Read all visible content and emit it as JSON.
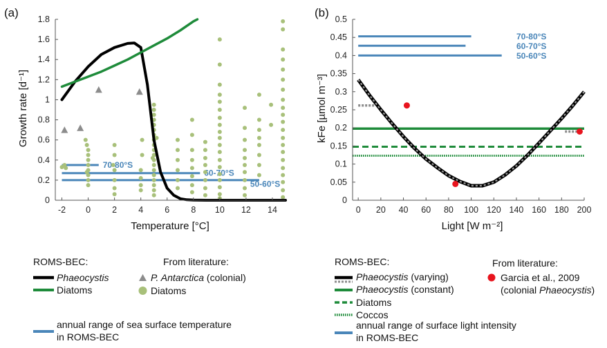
{
  "chart_data": [
    {
      "panel_label": "(a)",
      "type": "line",
      "xlabel": "Temperature [°C]",
      "ylabel": "Growth rate [d⁻¹]",
      "xlim": [
        -2.5,
        15
      ],
      "ylim": [
        0,
        1.8
      ],
      "xticks": [
        "-2",
        "0",
        "2",
        "4",
        "6",
        "8",
        "10",
        "12",
        "14"
      ],
      "yticks": [
        "0",
        "0.2",
        "0.4",
        "0.6",
        "0.8",
        "1",
        "1.2",
        "1.4",
        "1.6",
        "1.8"
      ],
      "series": [
        {
          "name": "Phaeocystis",
          "color": "#000000",
          "style": "solid",
          "x": [
            -2,
            -1,
            0,
            1,
            2,
            3,
            3.5,
            4,
            4.5,
            5,
            5.5,
            6,
            6.5,
            7,
            7.5,
            8,
            9,
            10,
            12,
            15
          ],
          "y": [
            1.0,
            1.18,
            1.33,
            1.45,
            1.52,
            1.56,
            1.565,
            1.52,
            1.15,
            0.6,
            0.28,
            0.12,
            0.05,
            0.015,
            0.005,
            0.002,
            0,
            0,
            0,
            0
          ]
        },
        {
          "name": "Diatoms",
          "color": "#1e8b3a",
          "style": "solid",
          "x": [
            -2,
            -1,
            0,
            1,
            2,
            3,
            4,
            5,
            6,
            7,
            8,
            8.3
          ],
          "y": [
            1.13,
            1.18,
            1.23,
            1.28,
            1.34,
            1.4,
            1.47,
            1.54,
            1.61,
            1.69,
            1.78,
            1.8
          ]
        }
      ],
      "literature": [
        {
          "name": "P. Antarctica (colonial)",
          "marker": "triangle",
          "color": "#8c8c8c",
          "points": [
            [
              -1.8,
              0.7
            ],
            [
              -0.6,
              0.72
            ],
            [
              0.8,
              1.1
            ],
            [
              3.9,
              1.08
            ]
          ]
        },
        {
          "name": "Diatoms",
          "marker": "circle",
          "color": "#a8c07a",
          "points": [
            [
              -2,
              0.33
            ],
            [
              -1.8,
              0.35
            ],
            [
              -1.7,
              0.32
            ],
            [
              -0.2,
              0.6
            ],
            [
              -0.1,
              0.55
            ],
            [
              0,
              0.5
            ],
            [
              0,
              0.45
            ],
            [
              0,
              0.4
            ],
            [
              0,
              0.35
            ],
            [
              0,
              0.3
            ],
            [
              0,
              0.25
            ],
            [
              0,
              0.2
            ],
            [
              0,
              0.15
            ],
            [
              -0.1,
              0.28
            ],
            [
              2,
              0.55
            ],
            [
              2,
              0.45
            ],
            [
              2,
              0.3
            ],
            [
              2,
              0.2
            ],
            [
              2,
              0.12
            ],
            [
              2,
              0.06
            ],
            [
              1.9,
              0.35
            ],
            [
              4.1,
              0.6
            ],
            [
              4.1,
              0.45
            ],
            [
              4,
              0.3
            ],
            [
              4,
              0.22
            ],
            [
              4,
              0.15
            ],
            [
              4,
              0.1
            ],
            [
              5,
              0.95
            ],
            [
              5,
              0.9
            ],
            [
              5,
              0.85
            ],
            [
              5,
              0.8
            ],
            [
              5,
              0.75
            ],
            [
              5,
              0.7
            ],
            [
              5,
              0.65
            ],
            [
              5,
              0.6
            ],
            [
              5,
              0.55
            ],
            [
              5,
              0.5
            ],
            [
              5,
              0.45
            ],
            [
              5,
              0.4
            ],
            [
              5,
              0.35
            ],
            [
              5,
              0.3
            ],
            [
              5,
              0.25
            ],
            [
              5,
              0.2
            ],
            [
              5,
              0.15
            ],
            [
              5,
              0.1
            ],
            [
              5,
              0.05
            ],
            [
              5.2,
              0.62
            ],
            [
              4.9,
              0.42
            ],
            [
              6.8,
              0.6
            ],
            [
              6.8,
              0.5
            ],
            [
              6.8,
              0.4
            ],
            [
              6.8,
              0.3
            ],
            [
              6.8,
              0.2
            ],
            [
              6.8,
              0.12
            ],
            [
              7.9,
              0.8
            ],
            [
              7.9,
              0.65
            ],
            [
              7.9,
              0.5
            ],
            [
              7.9,
              0.4
            ],
            [
              7.9,
              0.32
            ],
            [
              7.9,
              0.24
            ],
            [
              7.9,
              0.15
            ],
            [
              7.9,
              0.08
            ],
            [
              8.9,
              0.58
            ],
            [
              8.9,
              0.5
            ],
            [
              8.9,
              0.42
            ],
            [
              8.9,
              0.35
            ],
            [
              8.9,
              0.28
            ],
            [
              8.9,
              0.2
            ],
            [
              8.9,
              0.12
            ],
            [
              8.9,
              0.05
            ],
            [
              10,
              1.6
            ],
            [
              10,
              1.35
            ],
            [
              10,
              1.15
            ],
            [
              10,
              1.05
            ],
            [
              10,
              0.98
            ],
            [
              10,
              0.9
            ],
            [
              10,
              0.82
            ],
            [
              10,
              0.75
            ],
            [
              10,
              0.68
            ],
            [
              10,
              0.62
            ],
            [
              10,
              0.55
            ],
            [
              10,
              0.48
            ],
            [
              10,
              0.4
            ],
            [
              10,
              0.33
            ],
            [
              10,
              0.26
            ],
            [
              10,
              0.2
            ],
            [
              10,
              0.13
            ],
            [
              10,
              0.06
            ],
            [
              10,
              0.02
            ],
            [
              11.9,
              0.92
            ],
            [
              11.9,
              0.72
            ],
            [
              11.9,
              0.6
            ],
            [
              11.9,
              0.5
            ],
            [
              11.9,
              0.42
            ],
            [
              11.9,
              0.35
            ],
            [
              11.9,
              0.28
            ],
            [
              11.9,
              0.2
            ],
            [
              11.9,
              0.12
            ],
            [
              11.9,
              0.05
            ],
            [
              13,
              1.05
            ],
            [
              13,
              0.8
            ],
            [
              13,
              0.7
            ],
            [
              13,
              0.62
            ],
            [
              13,
              0.55
            ],
            [
              13,
              0.45
            ],
            [
              13,
              0.35
            ],
            [
              13,
              0.25
            ],
            [
              13.9,
              0.95
            ],
            [
              13.9,
              0.75
            ],
            [
              14.8,
              1.78
            ],
            [
              14.8,
              1.7
            ],
            [
              14.8,
              1.5
            ],
            [
              14.8,
              1.4
            ],
            [
              14.8,
              1.3
            ],
            [
              14.8,
              1.2
            ],
            [
              14.8,
              1.1
            ],
            [
              14.8,
              1.0
            ],
            [
              14.8,
              0.92
            ],
            [
              14.8,
              0.85
            ],
            [
              14.8,
              0.78
            ],
            [
              14.8,
              0.7
            ],
            [
              14.8,
              0.62
            ],
            [
              14.8,
              0.55
            ],
            [
              14.8,
              0.48
            ],
            [
              14.8,
              0.4
            ],
            [
              14.8,
              0.32
            ],
            [
              14.8,
              0.25
            ],
            [
              14.8,
              0.18
            ],
            [
              14.8,
              0.1
            ],
            [
              14.8,
              0.03
            ]
          ]
        }
      ],
      "ranges": [
        {
          "label": "70-80°S",
          "x": [
            -2,
            0.8
          ],
          "y": 0.35
        },
        {
          "label": "60-70°S",
          "x": [
            -2,
            8.5
          ],
          "y": 0.27
        },
        {
          "label": "50-60°S",
          "x": [
            -2,
            13
          ],
          "y": 0.2
        }
      ]
    },
    {
      "panel_label": "(b)",
      "type": "line",
      "xlabel": "Light [W m⁻²]",
      "ylabel": "kFe [µmol m⁻³]",
      "xlim": [
        -5,
        200
      ],
      "ylim": [
        0,
        0.5
      ],
      "xticks": [
        "0",
        "20",
        "40",
        "60",
        "80",
        "100",
        "120",
        "140",
        "160",
        "180",
        "200"
      ],
      "yticks": [
        "0",
        "0.05",
        "0.1",
        "0.15",
        "0.2",
        "0.25",
        "0.3",
        "0.35",
        "0.4",
        "0.45",
        "0.5"
      ],
      "series": [
        {
          "name": "Phaeocystis (varying)",
          "color": "#000000",
          "style": "black-with-grey-dashes",
          "x": [
            0,
            10,
            20,
            30,
            40,
            50,
            60,
            70,
            80,
            90,
            100,
            110,
            120,
            130,
            140,
            150,
            160,
            170,
            180,
            190,
            200
          ],
          "y": [
            0.333,
            0.29,
            0.25,
            0.212,
            0.176,
            0.143,
            0.114,
            0.09,
            0.068,
            0.052,
            0.04,
            0.04,
            0.05,
            0.07,
            0.095,
            0.125,
            0.158,
            0.192,
            0.226,
            0.262,
            0.3
          ]
        },
        {
          "name": "Phaeocystis (constant)",
          "color": "#1e8b3a",
          "style": "solid",
          "y": 0.198
        },
        {
          "name": "Diatoms",
          "color": "#1e8b3a",
          "style": "dashed",
          "y": 0.148
        },
        {
          "name": "Coccos",
          "color": "#1e8b3a",
          "style": "dotted",
          "y": 0.123
        }
      ],
      "grey_segments": [
        {
          "x": [
            0,
            15
          ],
          "y": 0.262
        },
        {
          "x": [
            183,
            197
          ],
          "y": 0.19
        }
      ],
      "literature": [
        {
          "name": "Garcia et al., 2009 (colonial Phaeocystis)",
          "marker": "circle",
          "color": "#e8141e",
          "points": [
            [
              43,
              0.262
            ],
            [
              86,
              0.045
            ],
            [
              196,
              0.19
            ]
          ]
        }
      ],
      "ranges": [
        {
          "label": "70-80°S",
          "x": [
            0,
            100
          ],
          "y": 0.453
        },
        {
          "label": "60-70°S",
          "x": [
            0,
            95
          ],
          "y": 0.427
        },
        {
          "label": "50-60°S",
          "x": [
            0,
            127
          ],
          "y": 0.4
        }
      ]
    }
  ],
  "legend_a": {
    "roms_title": "ROMS-BEC:",
    "roms_phaeo": "Phaeocystis",
    "roms_diatoms": "Diatoms",
    "lit_title": "From literature:",
    "lit_pant": "P. Antarctica",
    "lit_pant_suffix": " (colonial)",
    "lit_diatoms": "Diatoms",
    "range_line1": "annual range of sea surface temperature",
    "range_line2": "in ROMS-BEC"
  },
  "legend_b": {
    "roms_title": "ROMS-BEC:",
    "phaeo_var": "Phaeocystis",
    "phaeo_var_suffix": " (varying)",
    "phaeo_const": "Phaeocystis",
    "phaeo_const_suffix": " (constant)",
    "diatoms": "Diatoms",
    "coccos": "Coccos",
    "lit_title": "From literature:",
    "garcia_line1": "Garcia et al., 2009",
    "garcia_line2_a": "(colonial ",
    "garcia_line2_b": "Phaeocystis",
    "garcia_line2_c": ")",
    "range_line1": "annual range of surface light intensity",
    "range_line2": "in ROMS-BEC"
  },
  "colors": {
    "black": "#000000",
    "green": "#1e8b3a",
    "blue": "#4a86b9",
    "grey": "#8c8c8c",
    "olive": "#a8c07a",
    "red": "#e8141e"
  }
}
